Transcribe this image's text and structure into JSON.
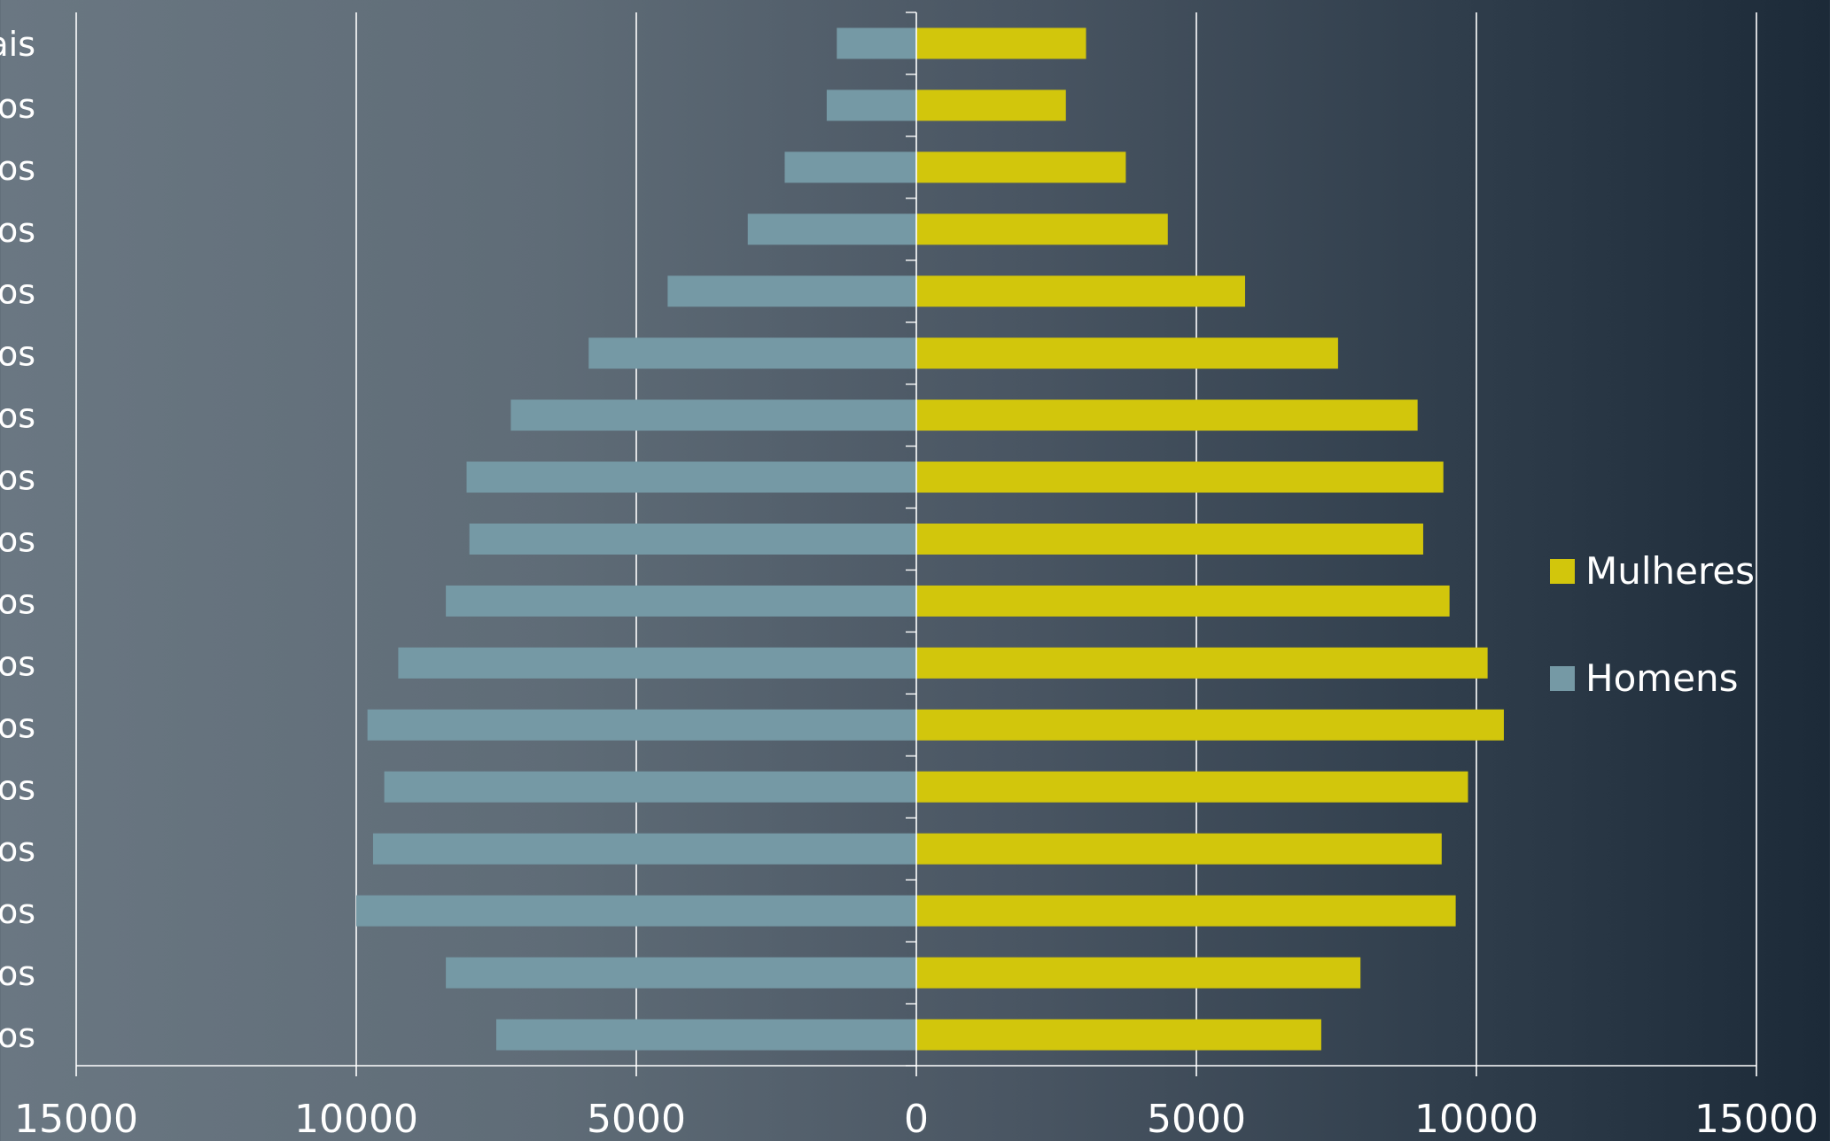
{
  "chart_data": {
    "type": "bar",
    "orientation": "horizontal",
    "subtype": "population-pyramid",
    "categories": [
      "os",
      "os",
      "os",
      "os",
      "os",
      "os",
      "os",
      "os",
      "os",
      "os",
      "os",
      "os",
      "os",
      "os",
      "os",
      "os",
      "ais"
    ],
    "series": [
      {
        "name": "Homens",
        "color": "#7599a5",
        "values": [
          -7500,
          -8400,
          -10000,
          -9700,
          -9500,
          -9800,
          -9250,
          -8400,
          -7980,
          -8030,
          -7240,
          -5850,
          -4440,
          -3010,
          -2350,
          -1600,
          -1420
        ]
      },
      {
        "name": "Mulheres",
        "color": "#d2c60c",
        "values": [
          7230,
          7930,
          9630,
          9380,
          9850,
          10490,
          10200,
          9520,
          9050,
          9410,
          8950,
          7530,
          5870,
          4490,
          3740,
          2670,
          3030
        ]
      }
    ],
    "xlim": [
      -15000,
      15000
    ],
    "xticks": [
      "15000",
      "10000",
      "5000",
      "0",
      "5000",
      "10000",
      "15000"
    ],
    "grid": "vertical",
    "legend": {
      "position": "right",
      "entries": [
        "Mulheres",
        "Homens"
      ]
    },
    "title": "",
    "xlabel": "",
    "ylabel": ""
  }
}
